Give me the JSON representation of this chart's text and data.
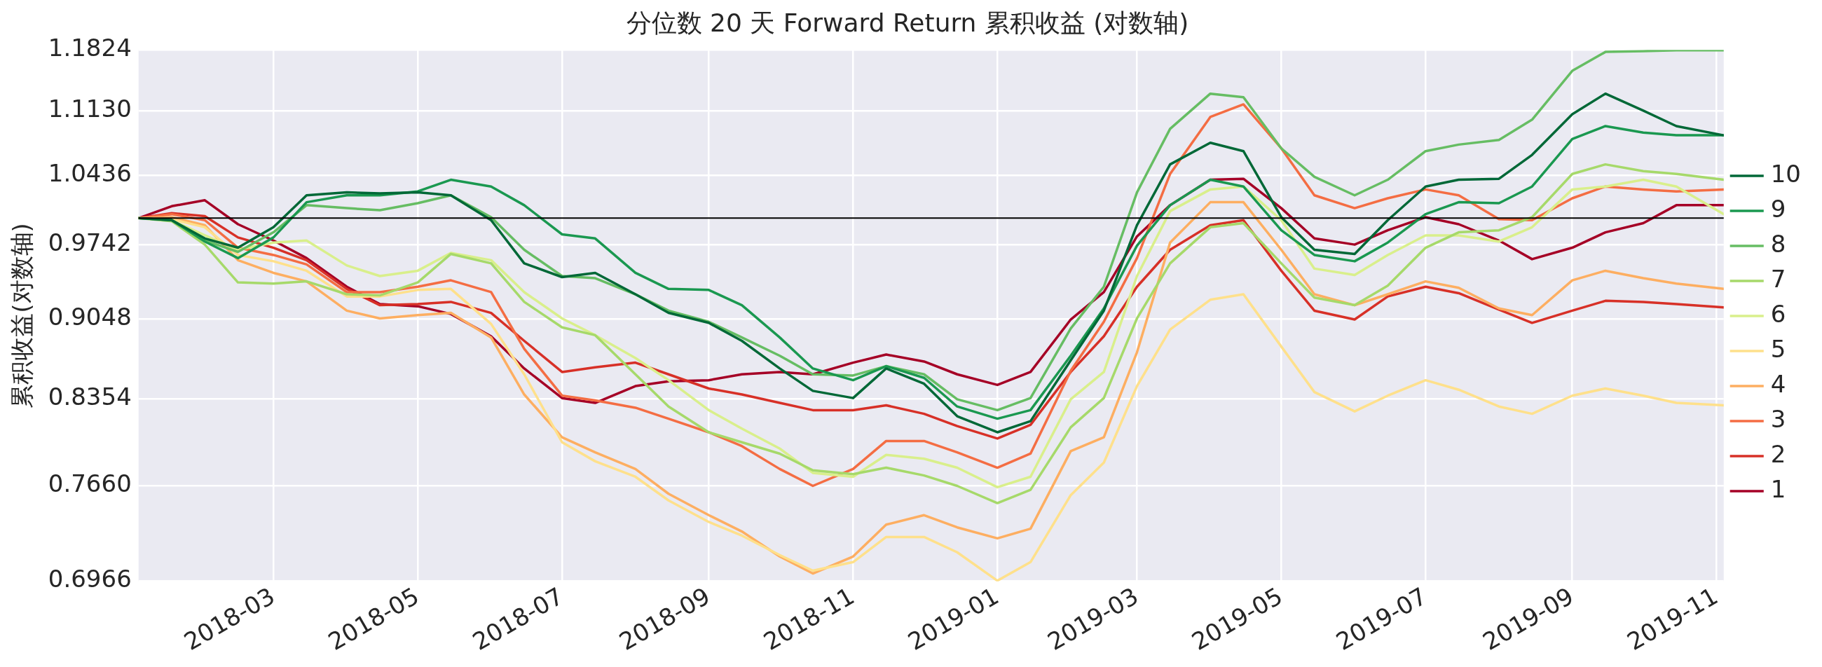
{
  "chart_data": {
    "type": "line",
    "title": "分位数 20 天 Forward Return 累积收益 (对数轴)",
    "ylabel": "累积收益(对数轴)",
    "x": [
      "2018-01-03",
      "2018-01-17",
      "2018-01-31",
      "2018-02-14",
      "2018-03-01",
      "2018-03-15",
      "2018-04-01",
      "2018-04-15",
      "2018-05-01",
      "2018-05-15",
      "2018-06-01",
      "2018-06-15",
      "2018-07-01",
      "2018-07-15",
      "2018-08-01",
      "2018-08-15",
      "2018-09-01",
      "2018-09-15",
      "2018-10-01",
      "2018-10-15",
      "2018-11-01",
      "2018-11-15",
      "2018-12-01",
      "2018-12-15",
      "2019-01-01",
      "2019-01-15",
      "2019-02-01",
      "2019-02-15",
      "2019-03-01",
      "2019-03-15",
      "2019-04-01",
      "2019-04-15",
      "2019-05-01",
      "2019-05-15",
      "2019-06-01",
      "2019-06-15",
      "2019-07-01",
      "2019-07-15",
      "2019-08-01",
      "2019-08-15",
      "2019-09-01",
      "2019-09-15",
      "2019-10-01",
      "2019-10-15",
      "2019-11-04"
    ],
    "xlim": [
      "2018-01-03",
      "2019-11-04"
    ],
    "xticks": [
      "2018-03",
      "2018-05",
      "2018-07",
      "2018-09",
      "2018-11",
      "2019-01",
      "2019-03",
      "2019-05",
      "2019-07",
      "2019-09",
      "2019-11"
    ],
    "ylim": [
      0.6966,
      1.1824
    ],
    "yticks": [
      0.6966,
      {
        "value": 0.766,
        "label": "0.7660"
      },
      0.8354,
      0.9048,
      0.9742,
      1.0436,
      {
        "value": 1.113,
        "label": "1.1130"
      },
      1.1824
    ],
    "log": true,
    "grid": true,
    "legend": "right",
    "marker": "none",
    "line_style": "solid",
    "ref_lines": [
      {
        "axis": "y",
        "value": 1,
        "color": "#000000"
      }
    ],
    "series": [
      {
        "name": "10",
        "color": "#006837",
        "values": [
          1.0,
          0.998,
          0.98,
          0.971,
          0.991,
          1.023,
          1.026,
          1.025,
          1.026,
          1.023,
          0.998,
          0.956,
          0.943,
          0.947,
          0.927,
          0.91,
          0.901,
          0.885,
          0.861,
          0.842,
          0.836,
          0.861,
          0.848,
          0.821,
          0.808,
          0.817,
          0.868,
          0.912,
          0.993,
          1.055,
          1.078,
          1.069,
          1.001,
          0.969,
          0.965,
          0.998,
          1.032,
          1.039,
          1.04,
          1.065,
          1.109,
          1.132,
          1.113,
          1.096,
          1.086
        ]
      },
      {
        "name": "9",
        "color": "#1a9850",
        "values": [
          1.0,
          0.998,
          0.977,
          0.961,
          0.981,
          1.016,
          1.023,
          1.023,
          1.027,
          1.039,
          1.032,
          1.013,
          0.984,
          0.98,
          0.947,
          0.932,
          0.931,
          0.917,
          0.888,
          0.861,
          0.851,
          0.863,
          0.853,
          0.829,
          0.819,
          0.826,
          0.872,
          0.914,
          0.973,
          1.013,
          1.039,
          1.032,
          0.988,
          0.964,
          0.958,
          0.976,
          1.004,
          1.016,
          1.015,
          1.032,
          1.082,
          1.096,
          1.089,
          1.086,
          1.086
        ]
      },
      {
        "name": "8",
        "color": "#66bd63",
        "values": [
          1.0,
          0.998,
          0.978,
          0.967,
          0.986,
          1.013,
          1.01,
          1.008,
          1.015,
          1.023,
          1.001,
          0.969,
          0.944,
          0.942,
          0.927,
          0.912,
          0.902,
          0.888,
          0.872,
          0.856,
          0.855,
          0.863,
          0.856,
          0.835,
          0.826,
          0.836,
          0.896,
          0.934,
          1.026,
          1.093,
          1.132,
          1.128,
          1.072,
          1.042,
          1.023,
          1.039,
          1.069,
          1.076,
          1.081,
          1.103,
          1.158,
          1.18,
          1.181,
          1.182,
          1.182
        ]
      },
      {
        "name": "7",
        "color": "#a6d96a",
        "values": [
          1.0,
          0.997,
          0.974,
          0.938,
          0.937,
          0.939,
          0.927,
          0.926,
          0.938,
          0.965,
          0.956,
          0.92,
          0.897,
          0.89,
          0.856,
          0.829,
          0.808,
          0.8,
          0.791,
          0.778,
          0.775,
          0.78,
          0.774,
          0.766,
          0.753,
          0.763,
          0.812,
          0.836,
          0.905,
          0.956,
          0.991,
          0.995,
          0.956,
          0.924,
          0.917,
          0.935,
          0.971,
          0.986,
          0.988,
          1.001,
          1.045,
          1.055,
          1.048,
          1.045,
          1.039
        ]
      },
      {
        "name": "6",
        "color": "#d9ef8b",
        "values": [
          1.0,
          0.998,
          0.983,
          0.969,
          0.976,
          0.978,
          0.954,
          0.944,
          0.949,
          0.966,
          0.959,
          0.929,
          0.905,
          0.89,
          0.87,
          0.851,
          0.826,
          0.811,
          0.795,
          0.776,
          0.773,
          0.79,
          0.787,
          0.78,
          0.765,
          0.773,
          0.835,
          0.858,
          0.944,
          1.007,
          1.029,
          1.032,
          0.998,
          0.951,
          0.945,
          0.964,
          0.983,
          0.983,
          0.977,
          0.991,
          1.029,
          1.032,
          1.039,
          1.032,
          1.004
        ]
      },
      {
        "name": "5",
        "color": "#fee08b",
        "values": [
          1.0,
          0.999,
          0.991,
          0.964,
          0.958,
          0.949,
          0.925,
          0.925,
          0.931,
          0.932,
          0.9,
          0.856,
          0.8,
          0.785,
          0.773,
          0.755,
          0.739,
          0.729,
          0.715,
          0.704,
          0.71,
          0.728,
          0.728,
          0.717,
          0.697,
          0.71,
          0.759,
          0.784,
          0.846,
          0.895,
          0.922,
          0.927,
          0.88,
          0.841,
          0.825,
          0.838,
          0.851,
          0.843,
          0.829,
          0.823,
          0.838,
          0.844,
          0.838,
          0.832,
          0.83
        ]
      },
      {
        "name": "4",
        "color": "#fdae61",
        "values": [
          1.0,
          1.001,
          0.993,
          0.959,
          0.947,
          0.939,
          0.912,
          0.905,
          0.908,
          0.91,
          0.888,
          0.839,
          0.804,
          0.792,
          0.779,
          0.76,
          0.744,
          0.732,
          0.714,
          0.702,
          0.714,
          0.737,
          0.744,
          0.735,
          0.727,
          0.734,
          0.793,
          0.804,
          0.875,
          0.976,
          1.016,
          1.016,
          0.969,
          0.927,
          0.917,
          0.927,
          0.939,
          0.933,
          0.914,
          0.908,
          0.94,
          0.949,
          0.942,
          0.937,
          0.932
        ]
      },
      {
        "name": "3",
        "color": "#f46d43",
        "values": [
          1.0,
          1.004,
          0.998,
          0.971,
          0.964,
          0.955,
          0.929,
          0.929,
          0.934,
          0.94,
          0.929,
          0.878,
          0.838,
          0.834,
          0.828,
          0.819,
          0.808,
          0.797,
          0.779,
          0.766,
          0.779,
          0.801,
          0.801,
          0.792,
          0.78,
          0.791,
          0.859,
          0.902,
          0.961,
          1.045,
          1.106,
          1.12,
          1.072,
          1.023,
          1.01,
          1.02,
          1.029,
          1.023,
          0.999,
          0.998,
          1.02,
          1.032,
          1.029,
          1.027,
          1.029
        ]
      },
      {
        "name": "2",
        "color": "#d73027",
        "values": [
          1.0,
          1.005,
          1.002,
          0.981,
          0.971,
          0.959,
          0.932,
          0.917,
          0.918,
          0.92,
          0.91,
          0.885,
          0.858,
          0.862,
          0.866,
          0.856,
          0.844,
          0.839,
          0.832,
          0.826,
          0.826,
          0.83,
          0.823,
          0.813,
          0.803,
          0.814,
          0.858,
          0.889,
          0.934,
          0.969,
          0.993,
          0.998,
          0.949,
          0.912,
          0.904,
          0.925,
          0.934,
          0.928,
          0.913,
          0.901,
          0.912,
          0.921,
          0.92,
          0.918,
          0.915
        ]
      },
      {
        "name": "1",
        "color": "#a50026",
        "values": [
          1.0,
          1.012,
          1.018,
          0.994,
          0.978,
          0.961,
          0.934,
          0.918,
          0.916,
          0.909,
          0.889,
          0.861,
          0.836,
          0.832,
          0.846,
          0.85,
          0.851,
          0.856,
          0.858,
          0.856,
          0.866,
          0.873,
          0.867,
          0.856,
          0.847,
          0.858,
          0.904,
          0.929,
          0.982,
          1.013,
          1.039,
          1.04,
          1.01,
          0.98,
          0.974,
          0.988,
          1.001,
          0.994,
          0.978,
          0.96,
          0.971,
          0.986,
          0.995,
          1.013,
          1.013
        ]
      }
    ]
  }
}
